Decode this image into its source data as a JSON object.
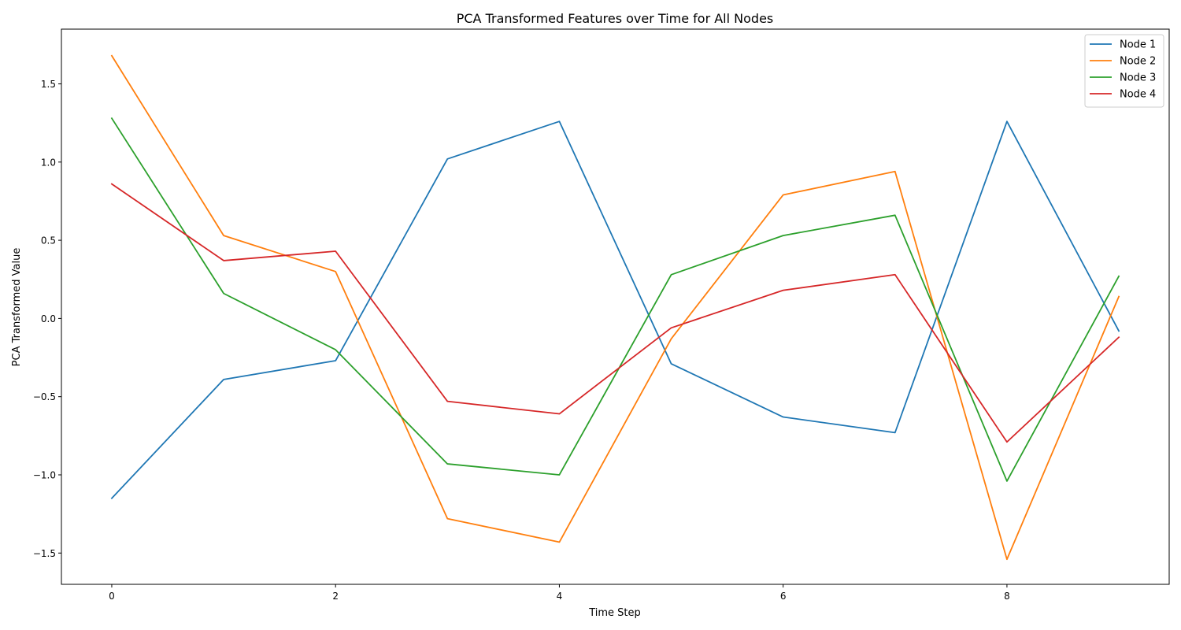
{
  "chart_data": {
    "type": "line",
    "title": "PCA Transformed Features over Time for All Nodes",
    "xlabel": "Time Step",
    "ylabel": "PCA Transformed Value",
    "x": [
      0,
      1,
      2,
      3,
      4,
      5,
      6,
      7,
      8,
      9
    ],
    "xlim": [
      -0.45,
      9.45
    ],
    "ylim": [
      -1.7,
      1.85
    ],
    "xticks": [
      0,
      2,
      4,
      6,
      8
    ],
    "xtick_labels": [
      "0",
      "2",
      "4",
      "6",
      "8"
    ],
    "yticks": [
      -1.5,
      -1.0,
      -0.5,
      0.0,
      0.5,
      1.0,
      1.5
    ],
    "ytick_labels": [
      "−1.5",
      "−1.0",
      "−0.5",
      "0.0",
      "0.5",
      "1.0",
      "1.5"
    ],
    "grid": false,
    "legend": "top-right",
    "series": [
      {
        "name": "Node 1",
        "color": "#1f77b4",
        "values": [
          -1.15,
          -0.39,
          -0.27,
          1.02,
          1.26,
          -0.29,
          -0.63,
          -0.73,
          1.26,
          -0.08
        ]
      },
      {
        "name": "Node 2",
        "color": "#ff7f0e",
        "values": [
          1.68,
          0.53,
          0.3,
          -1.28,
          -1.43,
          -0.13,
          0.79,
          0.94,
          -1.54,
          0.14
        ]
      },
      {
        "name": "Node 3",
        "color": "#2ca02c",
        "values": [
          1.28,
          0.16,
          -0.2,
          -0.93,
          -1.0,
          0.28,
          0.53,
          0.66,
          -1.04,
          0.27
        ]
      },
      {
        "name": "Node 4",
        "color": "#d62728",
        "values": [
          0.86,
          0.37,
          0.43,
          -0.53,
          -0.61,
          -0.06,
          0.18,
          0.28,
          -0.79,
          -0.12
        ]
      }
    ]
  }
}
